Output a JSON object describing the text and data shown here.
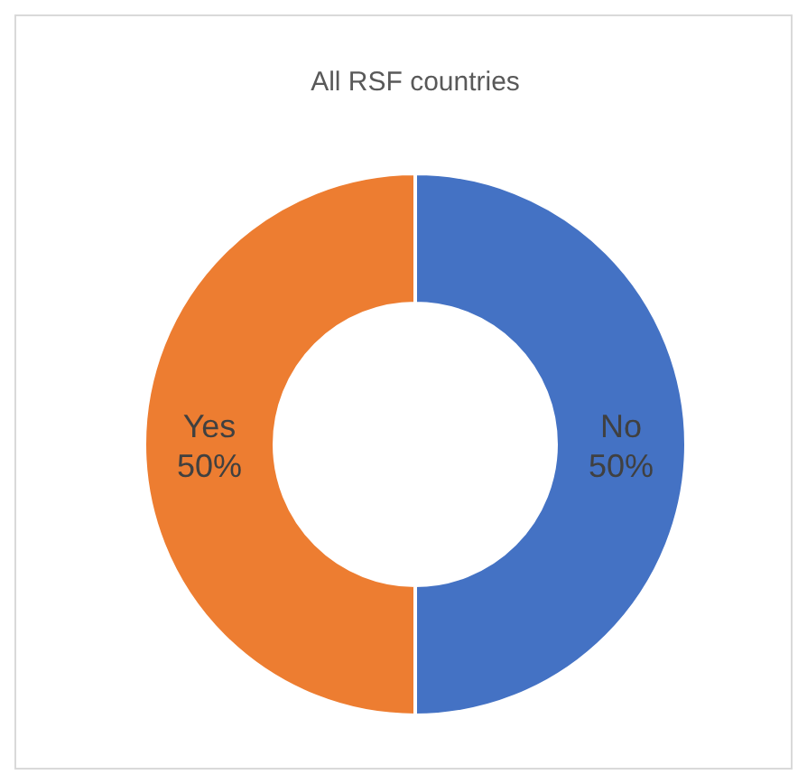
{
  "chart_data": {
    "type": "donut",
    "title": "All RSF countries",
    "categories": [
      "No",
      "Yes"
    ],
    "values": [
      50,
      50
    ],
    "colors": [
      "#4472c4",
      "#ed7d31"
    ],
    "value_labels": [
      "50%",
      "50%"
    ],
    "legend": false
  }
}
